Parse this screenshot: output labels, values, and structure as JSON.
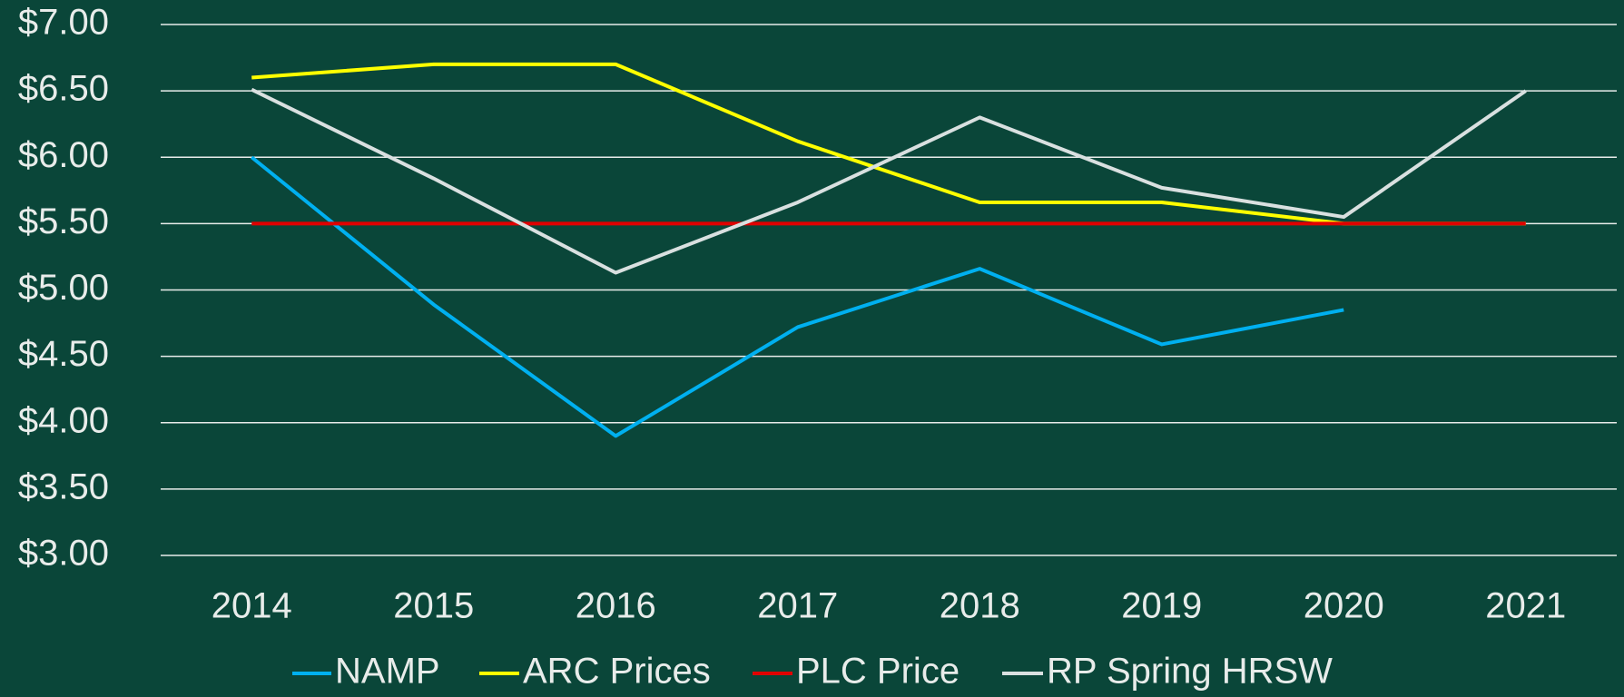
{
  "chart_data": {
    "type": "line",
    "categories": [
      "2014",
      "2015",
      "2016",
      "2017",
      "2018",
      "2019",
      "2020",
      "2021"
    ],
    "series": [
      {
        "name": "NAMP",
        "color": "#00b0f0",
        "values": [
          6.0,
          4.89,
          3.9,
          4.72,
          5.16,
          4.59,
          4.85,
          null
        ]
      },
      {
        "name": "ARC Prices",
        "color": "#ffff00",
        "values": [
          6.6,
          6.7,
          6.7,
          6.12,
          5.66,
          5.66,
          5.5,
          5.5
        ]
      },
      {
        "name": "PLC Price",
        "color": "#e00000",
        "values": [
          5.5,
          5.5,
          5.5,
          5.5,
          5.5,
          5.5,
          5.5,
          5.5
        ]
      },
      {
        "name": "RP Spring HRSW",
        "color": "#d9e0e0",
        "values": [
          6.51,
          5.84,
          5.13,
          5.66,
          6.3,
          5.77,
          5.55,
          6.5
        ]
      }
    ],
    "ylim": [
      3,
      7
    ],
    "yticks": [
      {
        "value": 3,
        "label": "$3.00"
      },
      {
        "value": 3.5,
        "label": "$3.50"
      },
      {
        "value": 4,
        "label": "$4.00"
      },
      {
        "value": 4.5,
        "label": "$4.50"
      },
      {
        "value": 5,
        "label": "$5.00"
      },
      {
        "value": 5.5,
        "label": "$5.50"
      },
      {
        "value": 6,
        "label": "$6.00"
      },
      {
        "value": 6.5,
        "label": "$6.50"
      },
      {
        "value": 7,
        "label": "$7.00"
      }
    ],
    "grid": true,
    "legend": "bottom"
  }
}
